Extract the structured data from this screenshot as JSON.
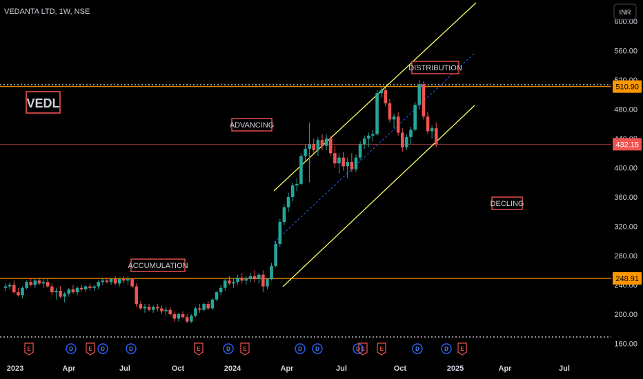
{
  "header": {
    "title": "VEDANTA LTD, 1W, NSE",
    "currency_button": "INR"
  },
  "colors": {
    "background": "#000000",
    "up_candle": "#26a69a",
    "down_candle": "#ef5350",
    "channel": "#ffff66",
    "midline": "#2962ff",
    "level_line": "#ff9800",
    "label_border": "#ef5350"
  },
  "chart_data": {
    "type": "candlestick",
    "symbol_label": "VEDL",
    "ylim": [
      150,
      600
    ],
    "y_ticks": [
      160,
      200,
      240,
      280,
      320,
      360,
      400,
      440,
      480,
      520,
      560,
      600
    ],
    "y_tick_labels": [
      "160.00",
      "200.00",
      "240.00",
      "280.00",
      "320.00",
      "360.00",
      "400.00",
      "440.00",
      "480.00",
      "520.00",
      "560.00",
      "600.00"
    ],
    "x_tick_labels": [
      "2023",
      "Apr",
      "Jul",
      "Oct",
      "2024",
      "Apr",
      "Jul",
      "Oct",
      "2025",
      "Apr",
      "Jul"
    ],
    "levels": [
      {
        "label": "510.90",
        "value": 510.9,
        "color": "#ff9800"
      },
      {
        "label": "248.91",
        "value": 248.91,
        "color": "#ff9800"
      },
      {
        "label": "432.15",
        "value": 432.15,
        "color": "#ef5350"
      }
    ],
    "annotations": [
      "ACCUMULATION",
      "ADVANCING",
      "DISTRIBUTION",
      "DECLING"
    ],
    "events": [
      "E",
      "D",
      "E",
      "D",
      "D",
      "E",
      "D",
      "E",
      "D",
      "D",
      "D",
      "E",
      "E",
      "D",
      "D",
      "E"
    ],
    "ohlc": [
      [
        236,
        242,
        232,
        238
      ],
      [
        238,
        244,
        234,
        240
      ],
      [
        240,
        246,
        228,
        230
      ],
      [
        230,
        236,
        224,
        226
      ],
      [
        226,
        238,
        222,
        236
      ],
      [
        236,
        246,
        234,
        244
      ],
      [
        244,
        250,
        238,
        240
      ],
      [
        240,
        248,
        236,
        246
      ],
      [
        246,
        250,
        240,
        242
      ],
      [
        242,
        248,
        236,
        244
      ],
      [
        244,
        248,
        236,
        238
      ],
      [
        238,
        242,
        226,
        230
      ],
      [
        230,
        236,
        220,
        232
      ],
      [
        232,
        238,
        222,
        224
      ],
      [
        224,
        230,
        216,
        228
      ],
      [
        228,
        236,
        224,
        234
      ],
      [
        234,
        240,
        228,
        230
      ],
      [
        230,
        238,
        226,
        236
      ],
      [
        236,
        240,
        232,
        234
      ],
      [
        234,
        240,
        230,
        238
      ],
      [
        238,
        242,
        232,
        236
      ],
      [
        236,
        240,
        232,
        238
      ],
      [
        238,
        246,
        234,
        244
      ],
      [
        244,
        250,
        240,
        246
      ],
      [
        246,
        250,
        242,
        244
      ],
      [
        244,
        250,
        240,
        248
      ],
      [
        248,
        252,
        240,
        242
      ],
      [
        242,
        250,
        238,
        248
      ],
      [
        248,
        252,
        242,
        246
      ],
      [
        246,
        252,
        240,
        248
      ],
      [
        248,
        250,
        236,
        238
      ],
      [
        238,
        242,
        210,
        214
      ],
      [
        214,
        218,
        206,
        208
      ],
      [
        208,
        214,
        202,
        210
      ],
      [
        210,
        214,
        204,
        206
      ],
      [
        206,
        212,
        202,
        210
      ],
      [
        210,
        214,
        204,
        208
      ],
      [
        208,
        212,
        200,
        204
      ],
      [
        204,
        210,
        198,
        206
      ],
      [
        206,
        210,
        198,
        200
      ],
      [
        200,
        204,
        190,
        194
      ],
      [
        194,
        202,
        190,
        200
      ],
      [
        200,
        204,
        194,
        196
      ],
      [
        196,
        200,
        188,
        190
      ],
      [
        190,
        200,
        188,
        198
      ],
      [
        198,
        210,
        196,
        208
      ],
      [
        208,
        214,
        202,
        206
      ],
      [
        206,
        216,
        204,
        214
      ],
      [
        214,
        218,
        206,
        208
      ],
      [
        208,
        222,
        206,
        220
      ],
      [
        220,
        232,
        218,
        230
      ],
      [
        230,
        240,
        226,
        236
      ],
      [
        236,
        248,
        232,
        246
      ],
      [
        246,
        252,
        240,
        242
      ],
      [
        242,
        248,
        236,
        244
      ],
      [
        244,
        254,
        240,
        250
      ],
      [
        250,
        256,
        242,
        246
      ],
      [
        246,
        252,
        240,
        248
      ],
      [
        248,
        256,
        244,
        252
      ],
      [
        252,
        260,
        244,
        248
      ],
      [
        248,
        256,
        242,
        254
      ],
      [
        254,
        260,
        230,
        238
      ],
      [
        238,
        250,
        234,
        248
      ],
      [
        248,
        270,
        246,
        266
      ],
      [
        266,
        300,
        264,
        296
      ],
      [
        296,
        330,
        292,
        326
      ],
      [
        326,
        350,
        322,
        346
      ],
      [
        346,
        366,
        340,
        360
      ],
      [
        360,
        380,
        354,
        376
      ],
      [
        376,
        386,
        368,
        378
      ],
      [
        378,
        420,
        376,
        416
      ],
      [
        416,
        432,
        410,
        426
      ],
      [
        426,
        462,
        380,
        432
      ],
      [
        432,
        440,
        420,
        424
      ],
      [
        424,
        442,
        416,
        438
      ],
      [
        438,
        446,
        424,
        430
      ],
      [
        430,
        446,
        424,
        440
      ],
      [
        440,
        444,
        416,
        420
      ],
      [
        420,
        430,
        400,
        406
      ],
      [
        406,
        420,
        392,
        414
      ],
      [
        414,
        422,
        396,
        402
      ],
      [
        402,
        414,
        386,
        408
      ],
      [
        408,
        420,
        394,
        398
      ],
      [
        398,
        418,
        394,
        414
      ],
      [
        414,
        436,
        410,
        432
      ],
      [
        432,
        444,
        426,
        440
      ],
      [
        440,
        448,
        428,
        444
      ],
      [
        444,
        452,
        436,
        446
      ],
      [
        446,
        506,
        444,
        502
      ],
      [
        502,
        512,
        496,
        506
      ],
      [
        506,
        510,
        484,
        488
      ],
      [
        488,
        494,
        462,
        466
      ],
      [
        466,
        474,
        454,
        470
      ],
      [
        470,
        476,
        444,
        448
      ],
      [
        448,
        454,
        422,
        428
      ],
      [
        428,
        446,
        424,
        442
      ],
      [
        442,
        456,
        432,
        452
      ],
      [
        452,
        490,
        450,
        486
      ],
      [
        486,
        520,
        480,
        514
      ],
      [
        514,
        518,
        466,
        470
      ],
      [
        470,
        476,
        446,
        450
      ],
      [
        450,
        458,
        440,
        454
      ],
      [
        454,
        462,
        428,
        432
      ]
    ]
  }
}
